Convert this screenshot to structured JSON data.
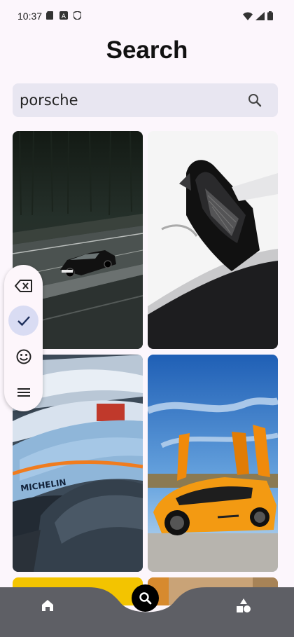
{
  "status_bar": {
    "time": "10:37",
    "icons": [
      "sd-card-icon",
      "a-icon",
      "shield-icon",
      "wifi-icon",
      "signal-icon",
      "battery-icon"
    ]
  },
  "page": {
    "title": "Search"
  },
  "search": {
    "value": "porsche",
    "icon": "search-icon"
  },
  "results": [
    {
      "name": "black-porsche-on-highway"
    },
    {
      "name": "silver-car-detail"
    },
    {
      "name": "race-cars-lineup"
    },
    {
      "name": "orange-lamborghini"
    },
    {
      "name": "yellow-car"
    },
    {
      "name": "car-partial"
    }
  ],
  "floating_toolbar": {
    "items": [
      "backspace-icon",
      "check-icon",
      "emoji-icon",
      "menu-icon"
    ]
  },
  "bottom_nav": {
    "items": [
      "home-icon",
      "search-icon",
      "categories-icon"
    ]
  },
  "colors": {
    "background": "#fcf6fc",
    "search_field": "#e8e6f1",
    "nav_bar": "#5e5f65",
    "toolbar_active": "#d9dcf3"
  }
}
